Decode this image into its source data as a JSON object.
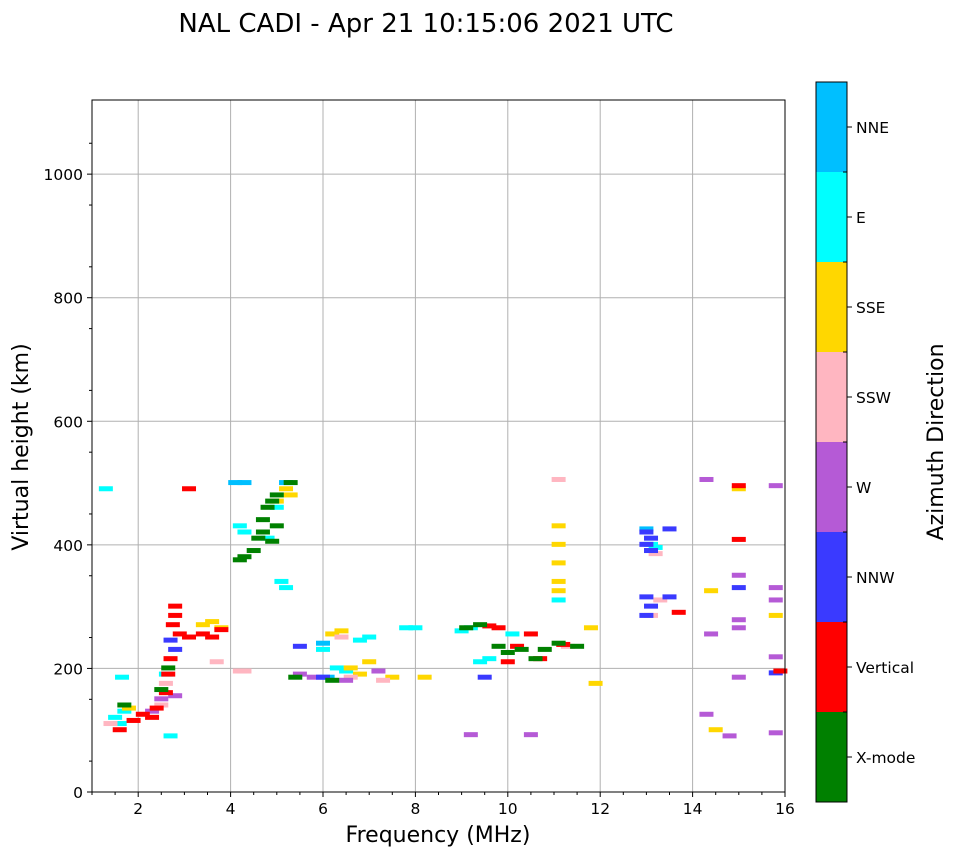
{
  "chart_data": {
    "type": "scatter",
    "title": "NAL CADI - Apr 21 10:15:06 2021 UTC",
    "xlabel": "Frequency (MHz)",
    "ylabel": "Virtual height (km)",
    "xlim": [
      1,
      16
    ],
    "ylim": [
      0,
      1120
    ],
    "xticks": [
      2,
      4,
      6,
      8,
      10,
      12,
      14,
      16
    ],
    "yticks": [
      0,
      200,
      400,
      600,
      800,
      1000
    ],
    "grid": true,
    "colorbar": {
      "label": "Azimuth Direction",
      "categories": [
        {
          "name": "X-mode",
          "color": "#008000"
        },
        {
          "name": "Vertical",
          "color": "#ff0000"
        },
        {
          "name": "NNW",
          "color": "#3a3aff"
        },
        {
          "name": "W",
          "color": "#b55ad6"
        },
        {
          "name": "SSW",
          "color": "#ffb6c1"
        },
        {
          "name": "SSE",
          "color": "#ffd700"
        },
        {
          "name": "E",
          "color": "#00ffff"
        },
        {
          "name": "NNE",
          "color": "#00bfff"
        }
      ]
    },
    "series": [
      {
        "name": "E",
        "points": [
          [
            1.3,
            490
          ],
          [
            1.5,
            120
          ],
          [
            1.6,
            110
          ],
          [
            1.7,
            130
          ],
          [
            1.65,
            185
          ],
          [
            2.6,
            190
          ],
          [
            2.7,
            90
          ],
          [
            4.2,
            430
          ],
          [
            4.3,
            420
          ],
          [
            4.8,
            410
          ],
          [
            5.1,
            340
          ],
          [
            5.2,
            330
          ],
          [
            5.0,
            460
          ],
          [
            6.0,
            230
          ],
          [
            6.3,
            200
          ],
          [
            6.5,
            195
          ],
          [
            6.8,
            245
          ],
          [
            7.0,
            250
          ],
          [
            7.8,
            265
          ],
          [
            8.0,
            265
          ],
          [
            9.0,
            260
          ],
          [
            9.2,
            265
          ],
          [
            9.4,
            210
          ],
          [
            9.6,
            215
          ],
          [
            10.1,
            255
          ],
          [
            11.1,
            310
          ],
          [
            13.1,
            400
          ],
          [
            13.2,
            395
          ]
        ]
      },
      {
        "name": "NNE",
        "points": [
          [
            4.1,
            500
          ],
          [
            4.3,
            500
          ],
          [
            5.2,
            500
          ],
          [
            6.0,
            240
          ],
          [
            6.1,
            185
          ],
          [
            13.0,
            425
          ]
        ]
      },
      {
        "name": "SSE",
        "points": [
          [
            1.8,
            135
          ],
          [
            3.4,
            270
          ],
          [
            3.6,
            275
          ],
          [
            3.8,
            265
          ],
          [
            5.2,
            490
          ],
          [
            5.3,
            480
          ],
          [
            5.0,
            470
          ],
          [
            6.2,
            255
          ],
          [
            6.4,
            260
          ],
          [
            6.6,
            200
          ],
          [
            6.8,
            190
          ],
          [
            7.0,
            210
          ],
          [
            7.5,
            185
          ],
          [
            8.2,
            185
          ],
          [
            11.1,
            430
          ],
          [
            11.1,
            400
          ],
          [
            11.1,
            370
          ],
          [
            11.1,
            340
          ],
          [
            11.1,
            325
          ],
          [
            11.8,
            265
          ],
          [
            11.9,
            175
          ],
          [
            14.4,
            325
          ],
          [
            14.5,
            100
          ],
          [
            15.0,
            490
          ],
          [
            15.8,
            285
          ]
        ]
      },
      {
        "name": "SSW",
        "points": [
          [
            1.4,
            110
          ],
          [
            2.5,
            140
          ],
          [
            2.6,
            175
          ],
          [
            3.7,
            210
          ],
          [
            4.2,
            195
          ],
          [
            4.3,
            195
          ],
          [
            6.4,
            250
          ],
          [
            6.6,
            185
          ],
          [
            7.3,
            180
          ],
          [
            11.1,
            505
          ],
          [
            11.3,
            235
          ],
          [
            13.2,
            385
          ],
          [
            13.3,
            310
          ],
          [
            13.1,
            285
          ]
        ]
      },
      {
        "name": "W",
        "points": [
          [
            2.3,
            130
          ],
          [
            2.5,
            150
          ],
          [
            2.8,
            155
          ],
          [
            5.5,
            190
          ],
          [
            5.8,
            185
          ],
          [
            6.5,
            180
          ],
          [
            7.2,
            195
          ],
          [
            9.2,
            92
          ],
          [
            10.5,
            92
          ],
          [
            14.3,
            505
          ],
          [
            14.4,
            255
          ],
          [
            14.3,
            125
          ],
          [
            14.8,
            90
          ],
          [
            15.0,
            350
          ],
          [
            15.0,
            278
          ],
          [
            15.0,
            265
          ],
          [
            15.0,
            185
          ],
          [
            15.8,
            495
          ],
          [
            15.8,
            330
          ],
          [
            15.8,
            310
          ],
          [
            15.8,
            218
          ],
          [
            15.8,
            95
          ]
        ]
      },
      {
        "name": "NNW",
        "points": [
          [
            2.7,
            245
          ],
          [
            2.8,
            230
          ],
          [
            5.5,
            235
          ],
          [
            6.0,
            185
          ],
          [
            9.5,
            185
          ],
          [
            13.0,
            420
          ],
          [
            13.1,
            410
          ],
          [
            13.0,
            400
          ],
          [
            13.1,
            390
          ],
          [
            13.0,
            315
          ],
          [
            13.1,
            300
          ],
          [
            13.0,
            285
          ],
          [
            13.5,
            425
          ],
          [
            13.5,
            315
          ],
          [
            15.0,
            330
          ],
          [
            15.8,
            192
          ]
        ]
      },
      {
        "name": "Vertical",
        "points": [
          [
            1.6,
            100
          ],
          [
            1.9,
            115
          ],
          [
            2.1,
            125
          ],
          [
            2.3,
            120
          ],
          [
            2.4,
            135
          ],
          [
            2.6,
            160
          ],
          [
            2.65,
            190
          ],
          [
            2.7,
            215
          ],
          [
            2.75,
            270
          ],
          [
            2.8,
            300
          ],
          [
            2.8,
            285
          ],
          [
            2.9,
            255
          ],
          [
            3.1,
            250
          ],
          [
            3.4,
            255
          ],
          [
            3.6,
            250
          ],
          [
            3.8,
            262
          ],
          [
            3.1,
            490
          ],
          [
            9.6,
            268
          ],
          [
            9.8,
            265
          ],
          [
            10.0,
            210
          ],
          [
            10.2,
            235
          ],
          [
            10.5,
            255
          ],
          [
            10.7,
            215
          ],
          [
            11.2,
            238
          ],
          [
            13.7,
            290
          ],
          [
            15.0,
            495
          ],
          [
            15.0,
            408
          ],
          [
            15.9,
            195
          ]
        ]
      },
      {
        "name": "X-mode",
        "points": [
          [
            1.7,
            140
          ],
          [
            2.5,
            165
          ],
          [
            2.65,
            200
          ],
          [
            4.2,
            375
          ],
          [
            4.3,
            380
          ],
          [
            4.5,
            390
          ],
          [
            4.6,
            410
          ],
          [
            4.7,
            440
          ],
          [
            4.8,
            460
          ],
          [
            4.9,
            470
          ],
          [
            5.0,
            480
          ],
          [
            4.7,
            420
          ],
          [
            4.9,
            405
          ],
          [
            5.0,
            430
          ],
          [
            5.3,
            500
          ],
          [
            5.4,
            185
          ],
          [
            6.2,
            180
          ],
          [
            9.1,
            265
          ],
          [
            9.4,
            270
          ],
          [
            9.8,
            235
          ],
          [
            10.0,
            225
          ],
          [
            10.3,
            230
          ],
          [
            10.6,
            215
          ],
          [
            10.8,
            230
          ],
          [
            11.1,
            240
          ],
          [
            11.5,
            235
          ]
        ]
      }
    ]
  }
}
